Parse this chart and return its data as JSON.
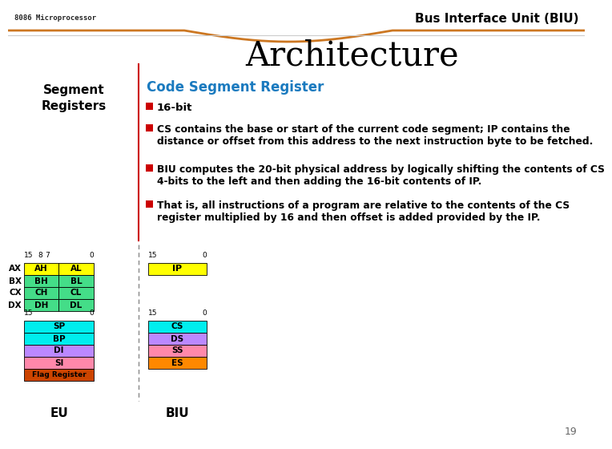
{
  "title_left": "8086 Microprocessor",
  "title_right": "Bus Interface Unit (BIU)",
  "main_title": "Architecture",
  "section_title": "Code Segment Register",
  "section_label": "Segment\nRegisters",
  "bullets": [
    "16-bit",
    "CS contains the base or start of the current code segment; IP contains the\ndistance or offset from this address to the next instruction byte to be fetched.",
    "BIU computes the 20-bit physical address by logically shifting the contents of CS\n4-bits to the left and then adding the 16-bit contents of IP.",
    "That is, all instructions of a program are relative to the contents of the CS\nregister multiplied by 16 and then offset is added provided by the IP."
  ],
  "eu_label": "EU",
  "biu_label": "BIU",
  "page_number": "19",
  "bg_color": "#ffffff",
  "header_right_color": "#000000",
  "title_left_color": "#222222",
  "main_title_color": "#000000",
  "section_title_color": "#1a7abf",
  "section_label_color": "#000000",
  "bullet_color": "#cc0000",
  "text_color": "#000000",
  "orange_color": "#cc7722",
  "red_line_color": "#cc0000",
  "dash_color": "#888888",
  "eu_registers": [
    {
      "label": "AH",
      "color": "#ffff00"
    },
    {
      "label": "AL",
      "color": "#ffff00"
    },
    {
      "label": "BH",
      "color": "#44dd88"
    },
    {
      "label": "BL",
      "color": "#44dd88"
    },
    {
      "label": "CH",
      "color": "#44dd88"
    },
    {
      "label": "CL",
      "color": "#44dd88"
    },
    {
      "label": "DH",
      "color": "#44dd88"
    },
    {
      "label": "DL",
      "color": "#44dd88"
    }
  ],
  "eu_row_labels": [
    "AX",
    "BX",
    "CX",
    "DX"
  ],
  "eu_ptr_registers": [
    {
      "label": "SP",
      "color": "#00eeee"
    },
    {
      "label": "BP",
      "color": "#00eeee"
    },
    {
      "label": "DI",
      "color": "#bb88ff"
    },
    {
      "label": "SI",
      "color": "#ff88aa"
    },
    {
      "label": "Flag Register",
      "color": "#cc4400"
    }
  ],
  "biu_ip_register": {
    "label": "IP",
    "color": "#ffff00"
  },
  "biu_seg_registers": [
    {
      "label": "CS",
      "color": "#00eeee"
    },
    {
      "label": "DS",
      "color": "#bb88ff"
    },
    {
      "label": "SS",
      "color": "#ff88aa"
    },
    {
      "label": "ES",
      "color": "#ff8800"
    }
  ]
}
